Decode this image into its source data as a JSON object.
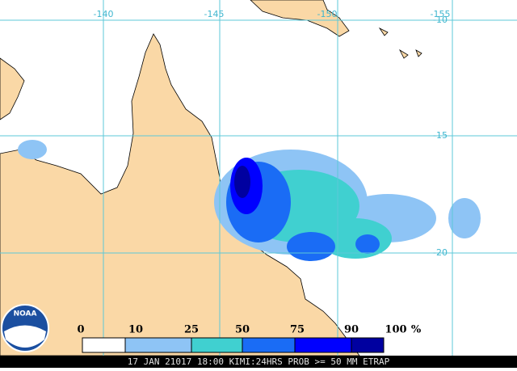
{
  "map": {
    "longitude_labels": [
      "-140",
      "-145",
      "-150",
      "-155"
    ],
    "latitude_labels": [
      "-10",
      "-15",
      "-20"
    ]
  },
  "logo": "NOAA",
  "legend": {
    "labels": [
      "0",
      "10",
      "25",
      "50",
      "75",
      "90",
      "100"
    ],
    "unit": "%"
  },
  "footer": "17 JAN 21017 18:00 KIMI:24HRS PROB >= 50 MM ETRAP"
}
